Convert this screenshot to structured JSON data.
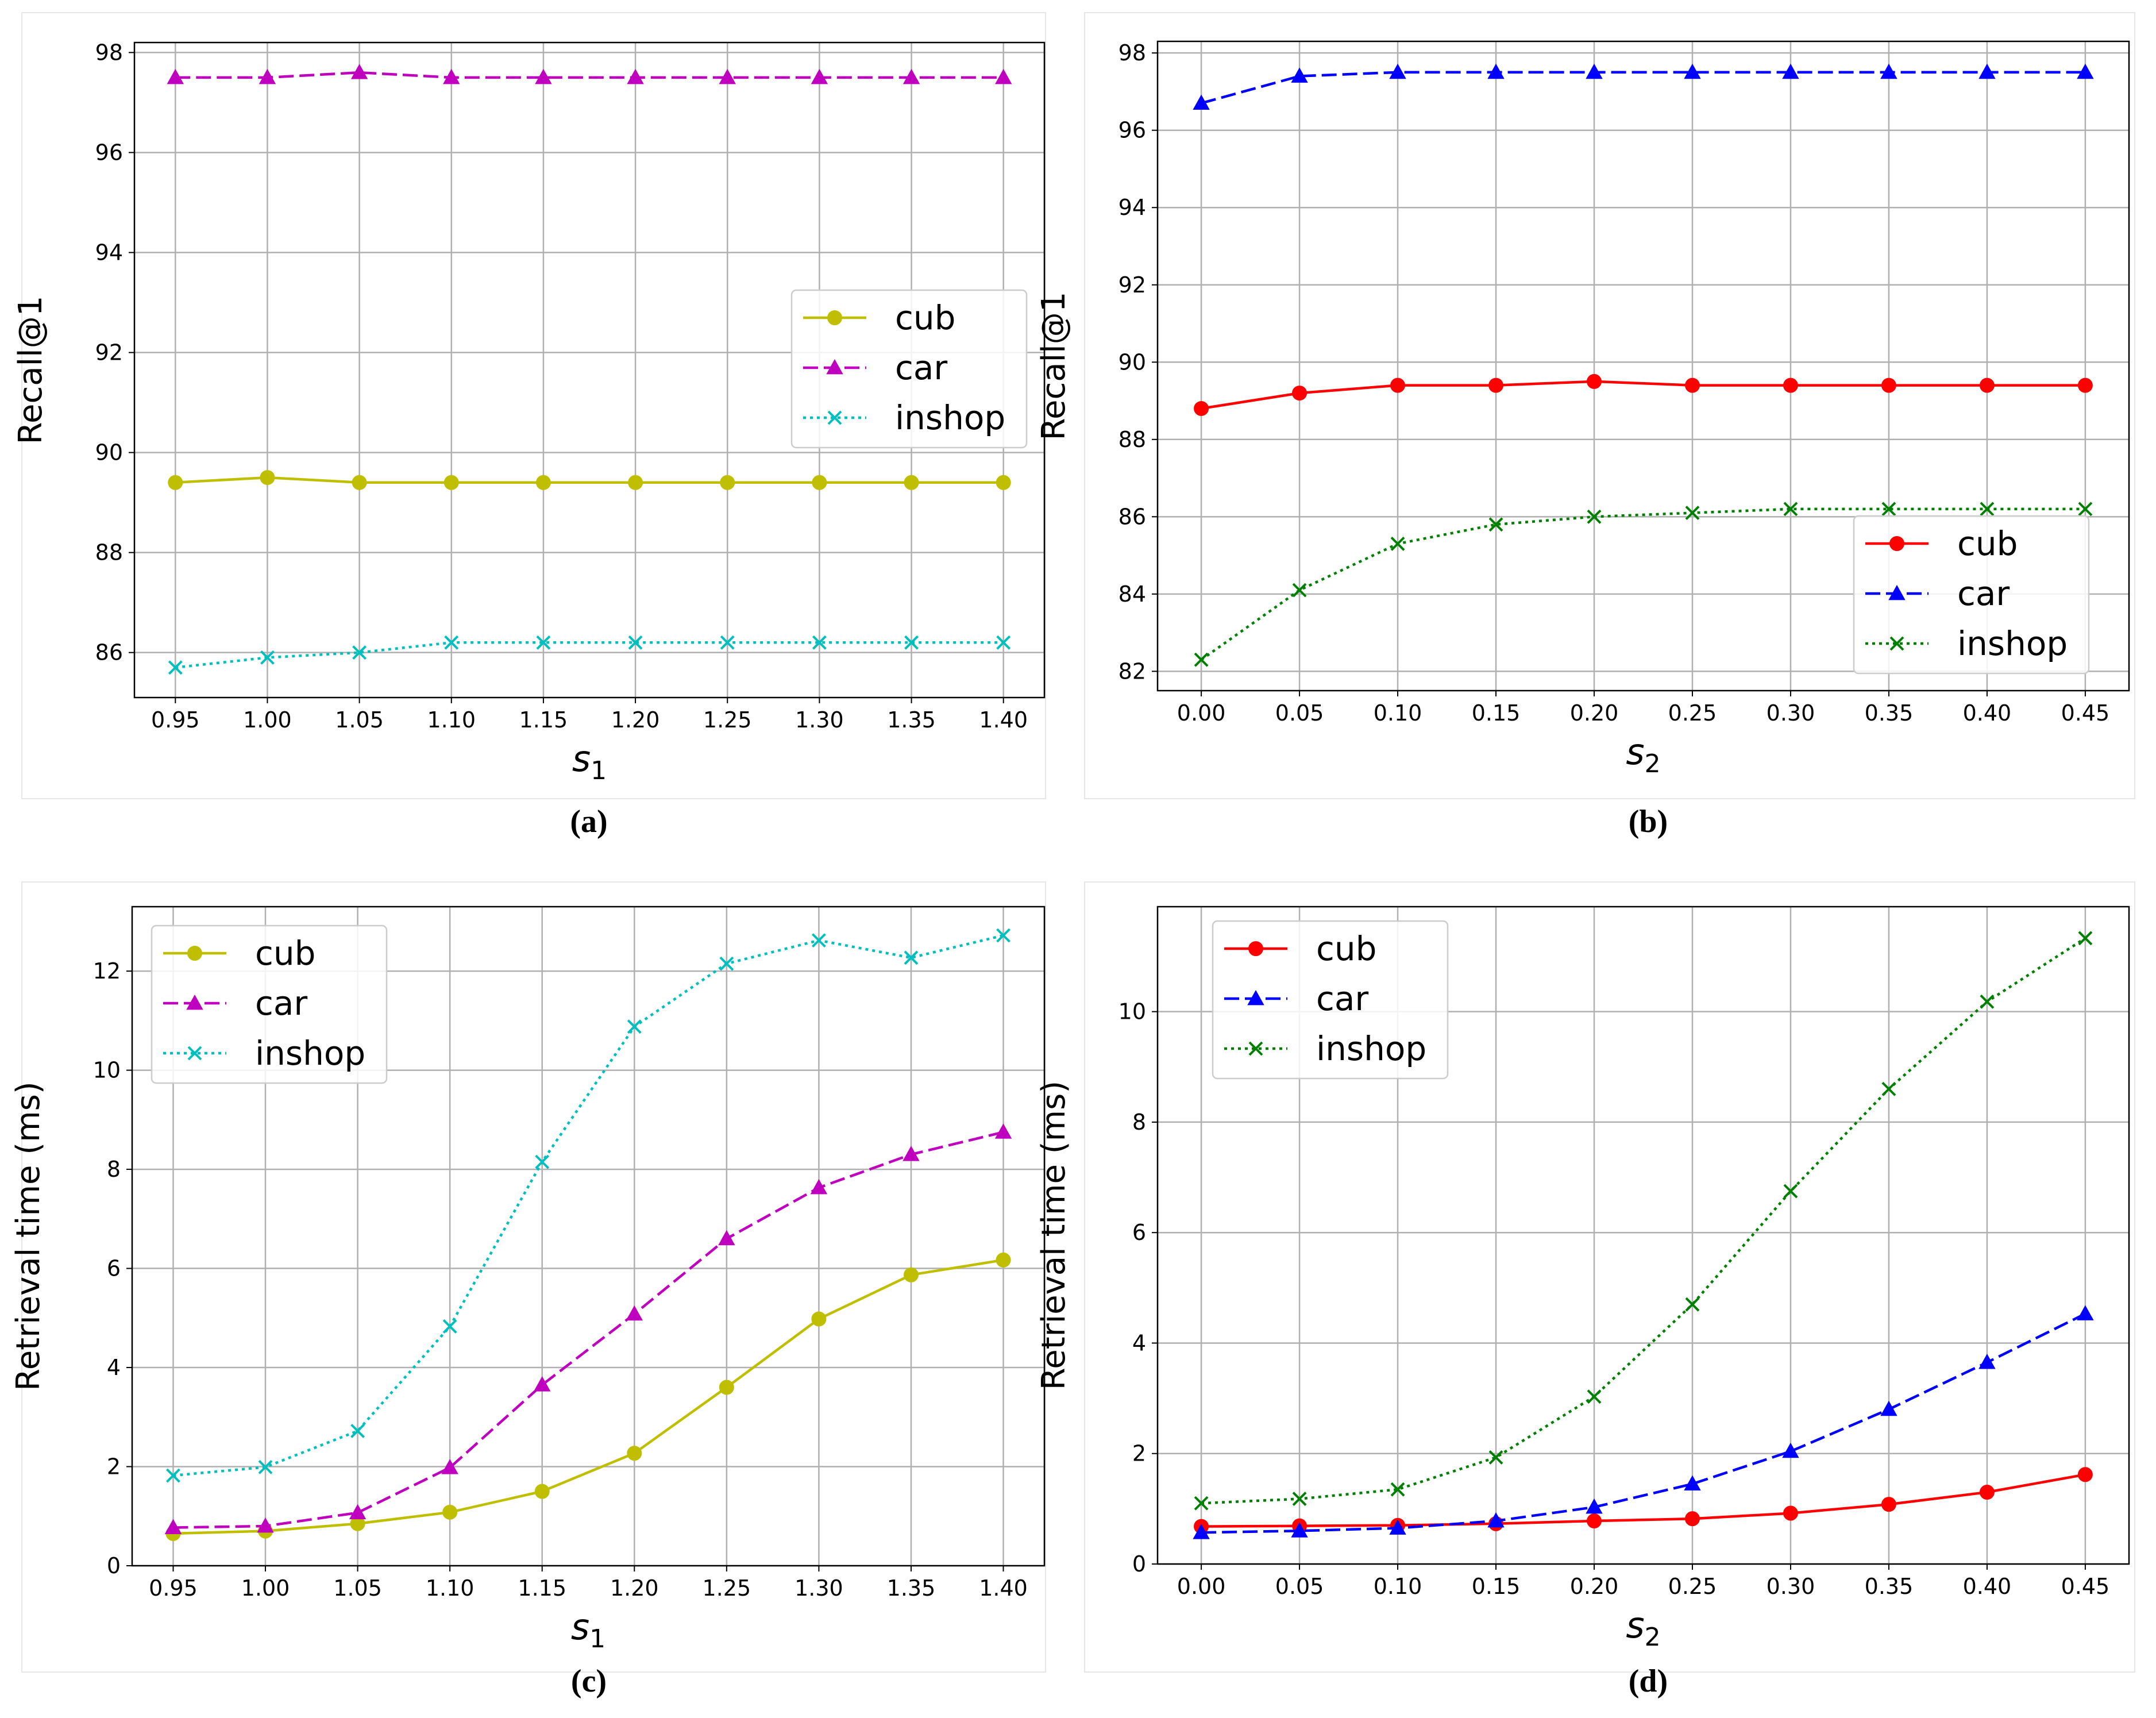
{
  "chart_data": [
    {
      "type": "line",
      "caption": "(a)",
      "xlabel": "s",
      "xlabel_sub": "1",
      "ylabel": "Recall@1",
      "x": [
        0.95,
        1.0,
        1.05,
        1.1,
        1.15,
        1.2,
        1.25,
        1.3,
        1.35,
        1.4
      ],
      "xtick_labels": [
        "0.95",
        "1.00",
        "1.05",
        "1.10",
        "1.15",
        "1.20",
        "1.25",
        "1.30",
        "1.35",
        "1.40"
      ],
      "ylim": [
        85.1,
        98.2
      ],
      "yticks": [
        86,
        88,
        90,
        92,
        94,
        96,
        98
      ],
      "grid": true,
      "legend": "center-right",
      "series": [
        {
          "name": "cub",
          "color": "#bfbf00",
          "style": "solid",
          "marker": "circle",
          "values": [
            89.4,
            89.5,
            89.4,
            89.4,
            89.4,
            89.4,
            89.4,
            89.4,
            89.4,
            89.4
          ]
        },
        {
          "name": "car",
          "color": "#bf00bf",
          "style": "dashed",
          "marker": "triangle",
          "values": [
            97.5,
            97.5,
            97.6,
            97.5,
            97.5,
            97.5,
            97.5,
            97.5,
            97.5,
            97.5
          ]
        },
        {
          "name": "inshop",
          "color": "#00bfbf",
          "style": "dotted",
          "marker": "x",
          "values": [
            85.7,
            85.9,
            86.0,
            86.2,
            86.2,
            86.2,
            86.2,
            86.2,
            86.2,
            86.2
          ]
        }
      ]
    },
    {
      "type": "line",
      "caption": "(b)",
      "xlabel": "s",
      "xlabel_sub": "2",
      "ylabel": "Recall@1",
      "x": [
        0.0,
        0.05,
        0.1,
        0.15,
        0.2,
        0.25,
        0.3,
        0.35,
        0.4,
        0.45
      ],
      "xtick_labels": [
        "0.00",
        "0.05",
        "0.10",
        "0.15",
        "0.20",
        "0.25",
        "0.30",
        "0.35",
        "0.40",
        "0.45"
      ],
      "ylim": [
        81.5,
        98.3
      ],
      "yticks": [
        82,
        84,
        86,
        88,
        90,
        92,
        94,
        96,
        98
      ],
      "grid": true,
      "legend": "bottom-right",
      "series": [
        {
          "name": "cub",
          "color": "#ff0000",
          "style": "solid",
          "marker": "circle",
          "values": [
            88.8,
            89.2,
            89.4,
            89.4,
            89.5,
            89.4,
            89.4,
            89.4,
            89.4,
            89.4
          ]
        },
        {
          "name": "car",
          "color": "#0000ff",
          "style": "dashed",
          "marker": "triangle",
          "values": [
            96.7,
            97.4,
            97.5,
            97.5,
            97.5,
            97.5,
            97.5,
            97.5,
            97.5,
            97.5
          ]
        },
        {
          "name": "inshop",
          "color": "#008000",
          "style": "dotted",
          "marker": "x",
          "values": [
            82.3,
            84.1,
            85.3,
            85.8,
            86.0,
            86.1,
            86.2,
            86.2,
            86.2,
            86.2
          ]
        }
      ]
    },
    {
      "type": "line",
      "caption": "(c)",
      "xlabel": "s",
      "xlabel_sub": "1",
      "ylabel": "Retrieval time (ms)",
      "x": [
        0.95,
        1.0,
        1.05,
        1.1,
        1.15,
        1.2,
        1.25,
        1.3,
        1.35,
        1.4
      ],
      "xtick_labels": [
        "0.95",
        "1.00",
        "1.05",
        "1.10",
        "1.15",
        "1.20",
        "1.25",
        "1.30",
        "1.35",
        "1.40"
      ],
      "ylim": [
        0,
        13.3
      ],
      "yticks": [
        0,
        2,
        4,
        6,
        8,
        10,
        12
      ],
      "grid": true,
      "legend": "top-left",
      "series": [
        {
          "name": "cub",
          "color": "#bfbf00",
          "style": "solid",
          "marker": "circle",
          "values": [
            0.65,
            0.7,
            0.85,
            1.08,
            1.5,
            2.27,
            3.6,
            4.98,
            5.87,
            6.17
          ]
        },
        {
          "name": "car",
          "color": "#bf00bf",
          "style": "dashed",
          "marker": "triangle",
          "values": [
            0.77,
            0.8,
            1.07,
            1.98,
            3.65,
            5.08,
            6.6,
            7.63,
            8.3,
            8.75
          ]
        },
        {
          "name": "inshop",
          "color": "#00bfbf",
          "style": "dotted",
          "marker": "x",
          "values": [
            1.82,
            1.99,
            2.72,
            4.83,
            8.15,
            10.88,
            12.15,
            12.62,
            12.27,
            12.72
          ]
        }
      ]
    },
    {
      "type": "line",
      "caption": "(d)",
      "xlabel": "s",
      "xlabel_sub": "2",
      "ylabel": "Retrieval time (ms)",
      "x": [
        0.0,
        0.05,
        0.1,
        0.15,
        0.2,
        0.25,
        0.3,
        0.35,
        0.4,
        0.45
      ],
      "xtick_labels": [
        "0.00",
        "0.05",
        "0.10",
        "0.15",
        "0.20",
        "0.25",
        "0.30",
        "0.35",
        "0.40",
        "0.45"
      ],
      "ylim": [
        0,
        11.9
      ],
      "yticks": [
        0,
        2,
        4,
        6,
        8,
        10
      ],
      "grid": true,
      "legend": "top-left",
      "series": [
        {
          "name": "cub",
          "color": "#ff0000",
          "style": "solid",
          "marker": "circle",
          "values": [
            0.68,
            0.69,
            0.7,
            0.73,
            0.78,
            0.82,
            0.92,
            1.08,
            1.3,
            1.62
          ]
        },
        {
          "name": "car",
          "color": "#0000ff",
          "style": "dashed",
          "marker": "triangle",
          "values": [
            0.57,
            0.6,
            0.65,
            0.78,
            1.03,
            1.45,
            2.04,
            2.8,
            3.65,
            4.53
          ]
        },
        {
          "name": "inshop",
          "color": "#008000",
          "style": "dotted",
          "marker": "x",
          "values": [
            1.1,
            1.18,
            1.35,
            1.93,
            3.03,
            4.7,
            6.75,
            8.6,
            10.18,
            11.33
          ]
        }
      ]
    }
  ]
}
